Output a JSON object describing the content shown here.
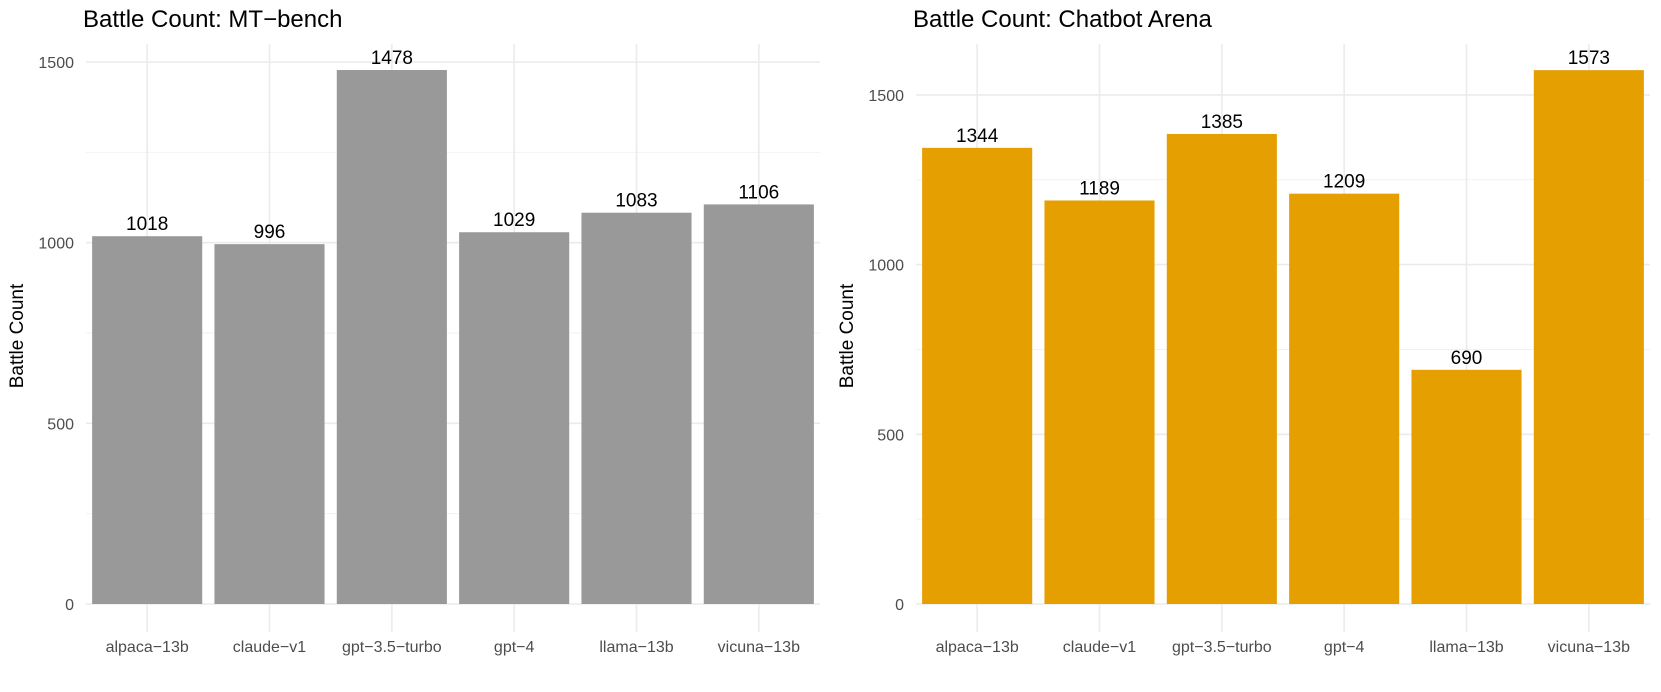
{
  "chart_data": [
    {
      "type": "bar",
      "title": "Battle Count: MT−bench",
      "xlabel": "",
      "ylabel": "Battle Count",
      "categories": [
        "alpaca−13b",
        "claude−v1",
        "gpt−3.5−turbo",
        "gpt−4",
        "llama−13b",
        "vicuna−13b"
      ],
      "values": [
        1018,
        996,
        1478,
        1029,
        1083,
        1106
      ],
      "data_labels": [
        "1018",
        "996",
        "1478",
        "1029",
        "1083",
        "1106"
      ],
      "ylim": [
        0,
        1550
      ],
      "yticks": [
        0,
        500,
        1000,
        1500
      ],
      "ytick_labels": [
        "0",
        "500",
        "1000",
        "1500"
      ],
      "bar_color": "#999999",
      "grid": true,
      "legend": "none"
    },
    {
      "type": "bar",
      "title": "Battle Count: Chatbot Arena",
      "xlabel": "",
      "ylabel": "Battle Count",
      "categories": [
        "alpaca−13b",
        "claude−v1",
        "gpt−3.5−turbo",
        "gpt−4",
        "llama−13b",
        "vicuna−13b"
      ],
      "values": [
        1344,
        1189,
        1385,
        1209,
        690,
        1573
      ],
      "data_labels": [
        "1344",
        "1189",
        "1385",
        "1209",
        "690",
        "1573"
      ],
      "ylim": [
        0,
        1650
      ],
      "yticks": [
        0,
        500,
        1000,
        1500
      ],
      "ytick_labels": [
        "0",
        "500",
        "1000",
        "1500"
      ],
      "bar_color": "#E69F00",
      "grid": true,
      "legend": "none"
    }
  ]
}
